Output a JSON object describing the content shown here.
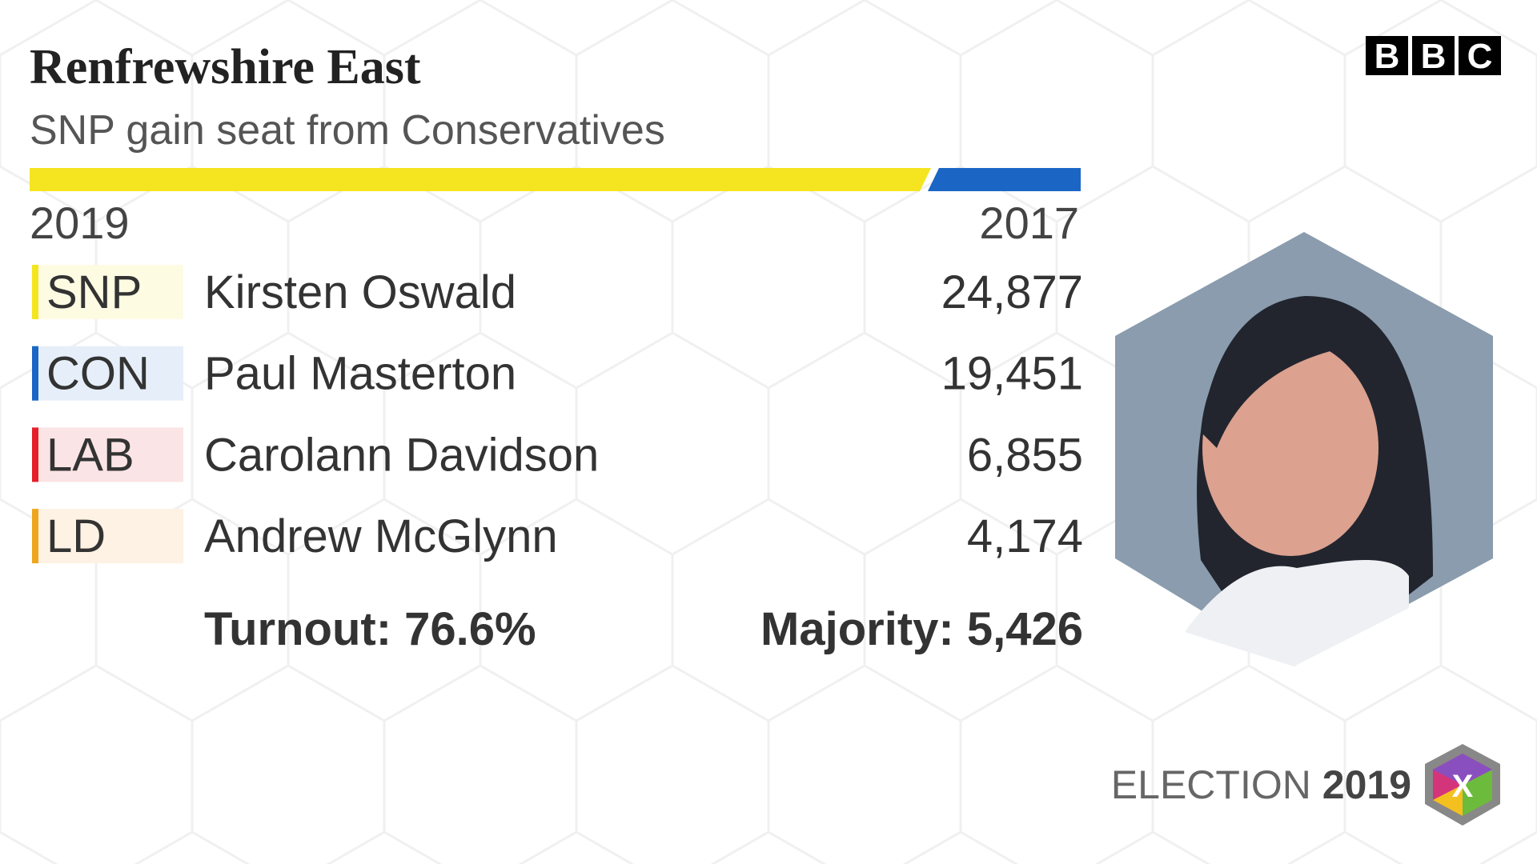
{
  "header": {
    "title": "Renfrewshire East",
    "subtitle": "SNP gain seat from Conservatives"
  },
  "logo": [
    "B",
    "B",
    "C"
  ],
  "years": {
    "current": "2019",
    "previous": "2017"
  },
  "results": [
    {
      "party": "SNP",
      "candidate": "Kirsten Oswald",
      "votes": "24,877",
      "color": "#f4e520",
      "tint": "#fefbe3"
    },
    {
      "party": "CON",
      "candidate": "Paul Masterton",
      "votes": "19,451",
      "color": "#1b66c4",
      "tint": "#e6eff9"
    },
    {
      "party": "LAB",
      "candidate": "Carolann Davidson",
      "votes": "6,855",
      "color": "#e4202a",
      "tint": "#fbe4e5"
    },
    {
      "party": "LD",
      "candidate": "Andrew McGlynn",
      "votes": "4,174",
      "color": "#eea51f",
      "tint": "#fdf2e3"
    }
  ],
  "summary": {
    "turnout": "Turnout: 76.6%",
    "majority": "Majority: 5,426"
  },
  "footer": {
    "label": "ELECTION",
    "year": "2019",
    "badge": "X"
  }
}
